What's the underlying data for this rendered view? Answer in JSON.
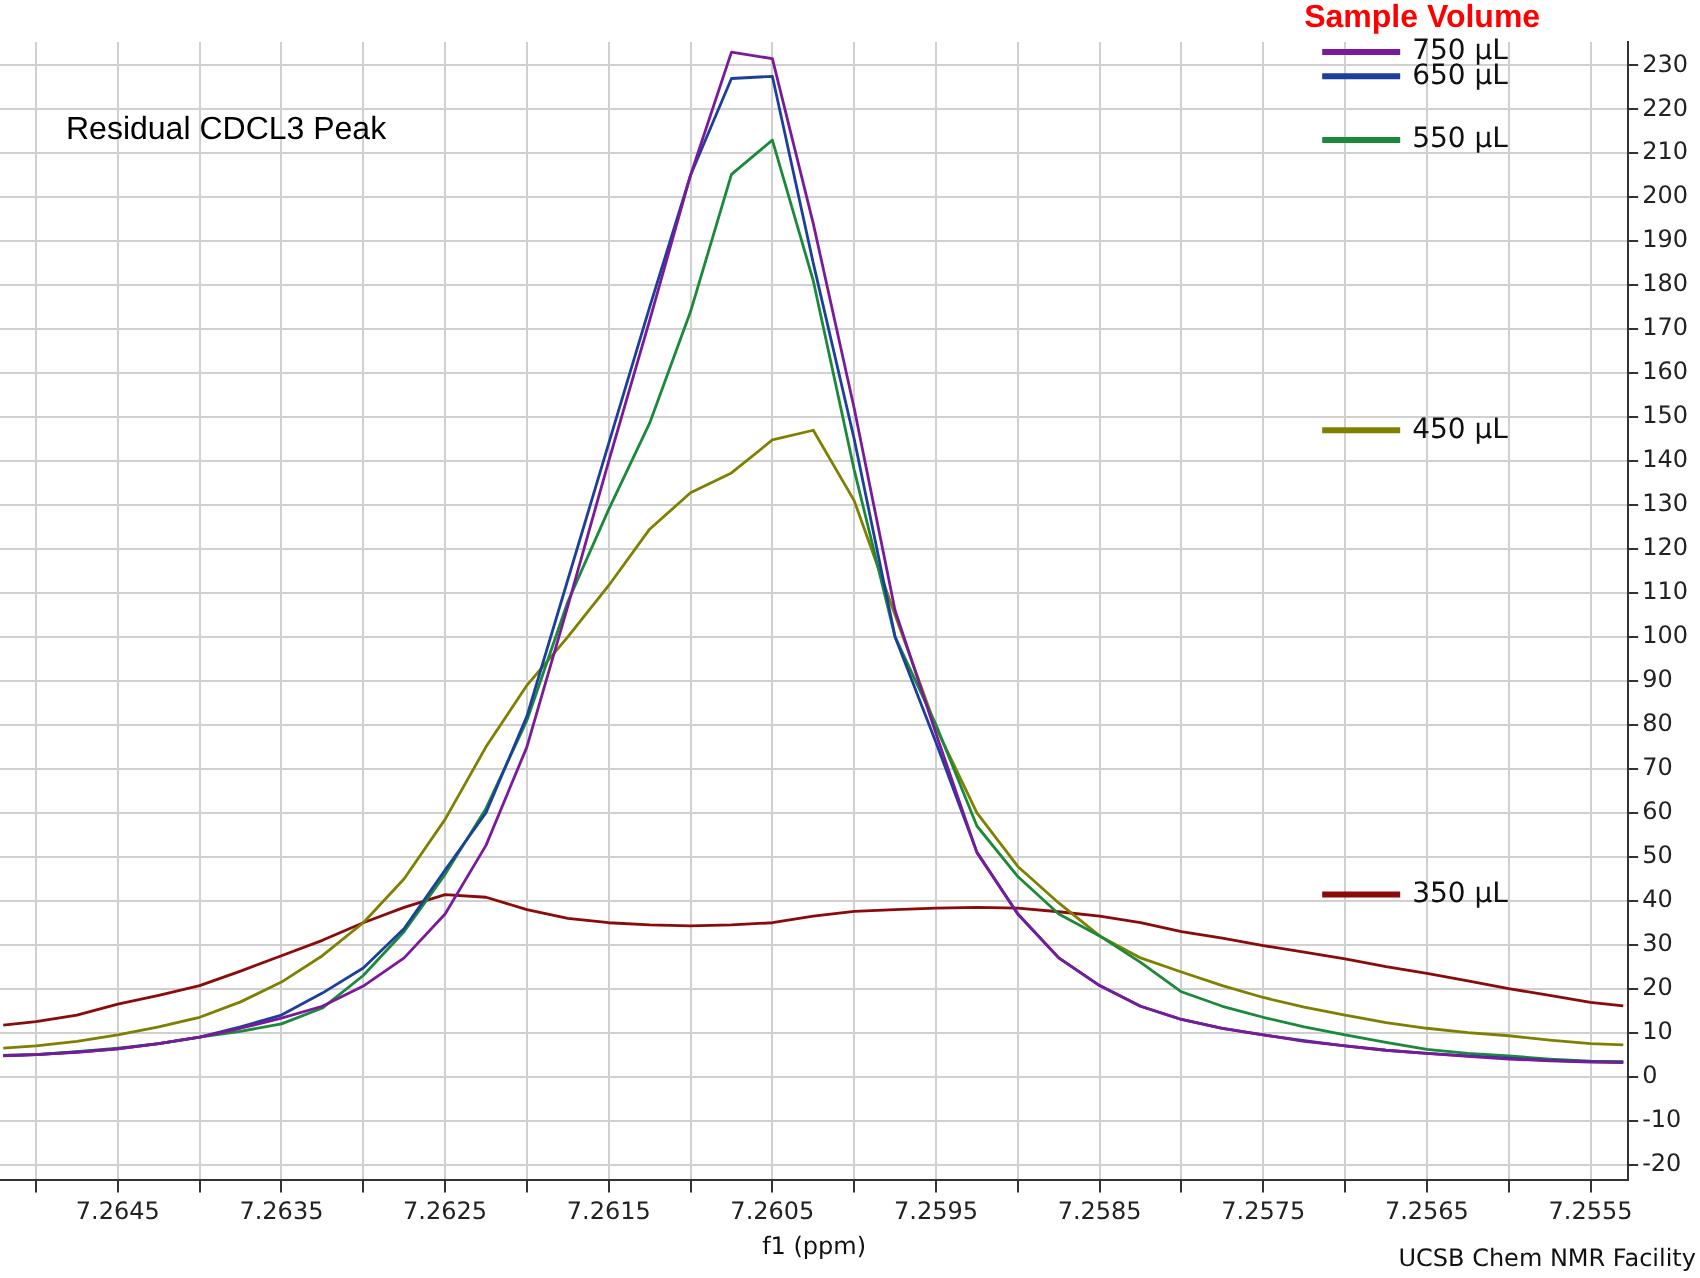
{
  "chart_data": {
    "type": "line",
    "title": "Residual CDCL3 Peak",
    "xlabel": "f1 (ppm)",
    "legend_title": "Sample Volume",
    "annotations": [
      "UCSB Chem NMR Facility"
    ],
    "x": [
      7.2652,
      7.265,
      7.26475,
      7.2645,
      7.26425,
      7.264,
      7.26375,
      7.2635,
      7.26325,
      7.263,
      7.26275,
      7.2625,
      7.26225,
      7.262,
      7.26175,
      7.2615,
      7.26125,
      7.261,
      7.26075,
      7.2605,
      7.26025,
      7.26,
      7.25975,
      7.2595,
      7.25925,
      7.259,
      7.25875,
      7.2585,
      7.25825,
      7.258,
      7.25775,
      7.2575,
      7.25725,
      7.257,
      7.25675,
      7.2565,
      7.25625,
      7.256,
      7.25575,
      7.2555,
      7.2553
    ],
    "series": [
      {
        "name": "750 μL",
        "color": "#7a1a9a",
        "values": [
          4.7,
          5,
          5.5,
          6.3,
          7.5,
          9,
          11,
          13.3,
          16,
          20.6,
          27,
          37,
          52.6,
          75,
          107,
          140,
          172,
          205,
          233,
          231.5,
          194,
          152,
          106,
          78,
          51,
          37,
          27,
          20.7,
          16,
          13,
          11,
          9.5,
          8,
          7,
          6,
          5.3,
          4.6,
          4,
          3.6,
          3.3,
          3.2
        ]
      },
      {
        "name": "650 μL",
        "color": "#1c3f9c",
        "values": [
          4.8,
          5,
          5.6,
          6.3,
          7.5,
          9,
          11.3,
          14,
          19,
          24.7,
          33.7,
          47,
          60,
          82,
          113,
          144,
          175,
          205,
          227,
          227.5,
          185,
          145,
          100,
          76,
          51,
          37,
          27,
          20.7,
          16,
          13,
          11,
          9.5,
          8.2,
          7,
          6,
          5.3,
          4.7,
          4.2,
          3.7,
          3.4,
          3.3
        ]
      },
      {
        "name": "550 μL",
        "color": "#1a8a3a",
        "values": [
          4.8,
          5,
          5.7,
          6.5,
          7.5,
          9,
          10.3,
          12,
          15.6,
          23,
          33,
          46,
          61,
          81,
          108,
          129,
          148.6,
          174,
          205.2,
          213,
          181,
          138,
          100,
          80,
          57,
          45.5,
          37,
          32,
          26,
          19.3,
          16,
          13.5,
          11.3,
          9.5,
          7.8,
          6.2,
          5.3,
          4.7,
          4,
          3.5,
          3.4
        ]
      },
      {
        "name": "450 μL",
        "color": "#7f8000",
        "values": [
          6.5,
          7,
          8,
          9.5,
          11.3,
          13.5,
          17,
          21.5,
          27.5,
          35,
          45,
          58.5,
          75,
          89,
          100,
          111.7,
          124.5,
          132.8,
          137.3,
          144.8,
          147,
          131,
          105,
          79.4,
          60,
          47.8,
          39.5,
          32,
          27,
          23.8,
          20.7,
          18,
          15.8,
          14,
          12.3,
          11,
          10,
          9.3,
          8.3,
          7.5,
          7.2
        ]
      },
      {
        "name": "350 μL",
        "color": "#8b0a0a",
        "values": [
          11.7,
          12.5,
          14,
          16.5,
          18.5,
          20.7,
          24,
          27.5,
          31,
          35,
          38.5,
          41.4,
          40.8,
          38,
          36,
          35,
          34.5,
          34.3,
          34.5,
          35,
          36.5,
          37.6,
          38,
          38.3,
          38.5,
          38.3,
          37.5,
          36.5,
          35,
          33,
          31.5,
          29.8,
          28.3,
          26.8,
          25,
          23.5,
          21.8,
          20,
          18.5,
          16.9,
          16.1
        ]
      }
    ],
    "xlim": [
      7.26522,
      7.25527
    ],
    "xticks": [
      {
        "value": 7.265,
        "label": null
      },
      7.2645,
      {
        "value": 7.264,
        "label": null
      },
      7.2635,
      {
        "value": 7.263,
        "label": null
      },
      7.2625,
      {
        "value": 7.262,
        "label": null
      },
      7.2615,
      {
        "value": 7.261,
        "label": null
      },
      7.2605,
      {
        "value": 7.26,
        "label": null
      },
      7.2595,
      {
        "value": 7.259,
        "label": null
      },
      7.2585,
      {
        "value": 7.258,
        "label": null
      },
      7.2575,
      {
        "value": 7.257,
        "label": null
      },
      7.2565,
      {
        "value": 7.256,
        "label": null
      },
      7.2555
    ],
    "ylim": [
      -23.6,
      235.3
    ],
    "yticks": [
      -20,
      -10,
      0,
      10,
      20,
      30,
      40,
      50,
      60,
      70,
      80,
      90,
      100,
      110,
      120,
      130,
      140,
      150,
      160,
      170,
      180,
      190,
      200,
      210,
      220,
      230
    ],
    "grid": true,
    "legend": "right",
    "marker": "none",
    "line_style": "solid"
  }
}
